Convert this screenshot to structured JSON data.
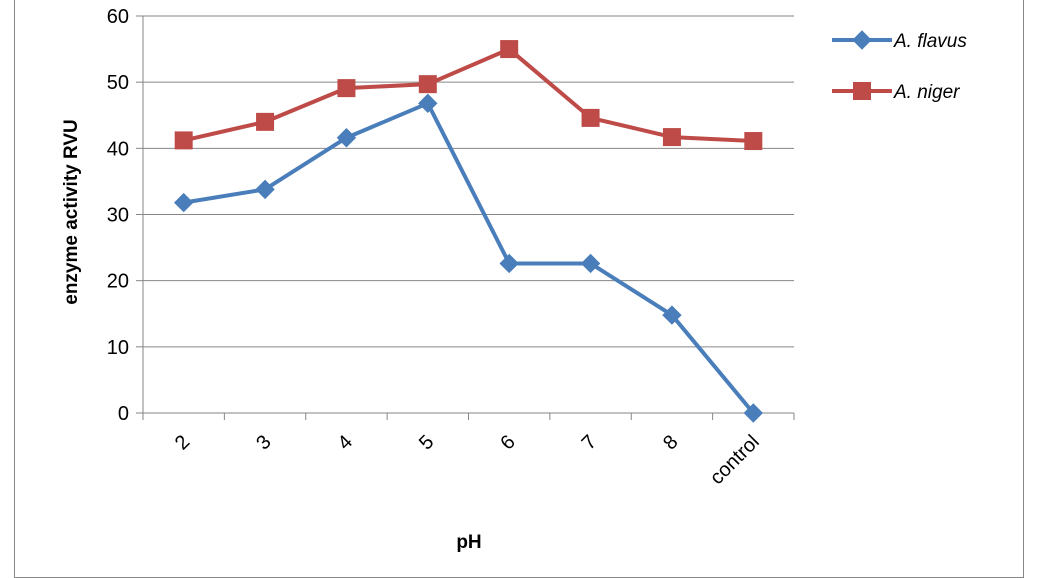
{
  "chart_data": {
    "type": "line",
    "categories": [
      "2",
      "3",
      "4",
      "5",
      "6",
      "7",
      "8",
      "control"
    ],
    "series": [
      {
        "name": "A. flavus",
        "color": "#4a7ebb",
        "marker": "diamond",
        "values": [
          31.8,
          33.8,
          41.6,
          46.8,
          22.6,
          22.6,
          14.8,
          0
        ]
      },
      {
        "name": "A. niger",
        "color": "#be4b48",
        "marker": "square",
        "values": [
          41.2,
          44.0,
          49.1,
          49.7,
          55.0,
          44.6,
          41.7,
          41.1
        ]
      }
    ],
    "xlabel": "pH",
    "ylabel": "enzyme activity  RVU",
    "ylim": [
      0,
      60
    ],
    "yticks": [
      "0",
      "10",
      "20",
      "30",
      "40",
      "50",
      "60"
    ],
    "grid": true,
    "legend_position": "top-right"
  }
}
